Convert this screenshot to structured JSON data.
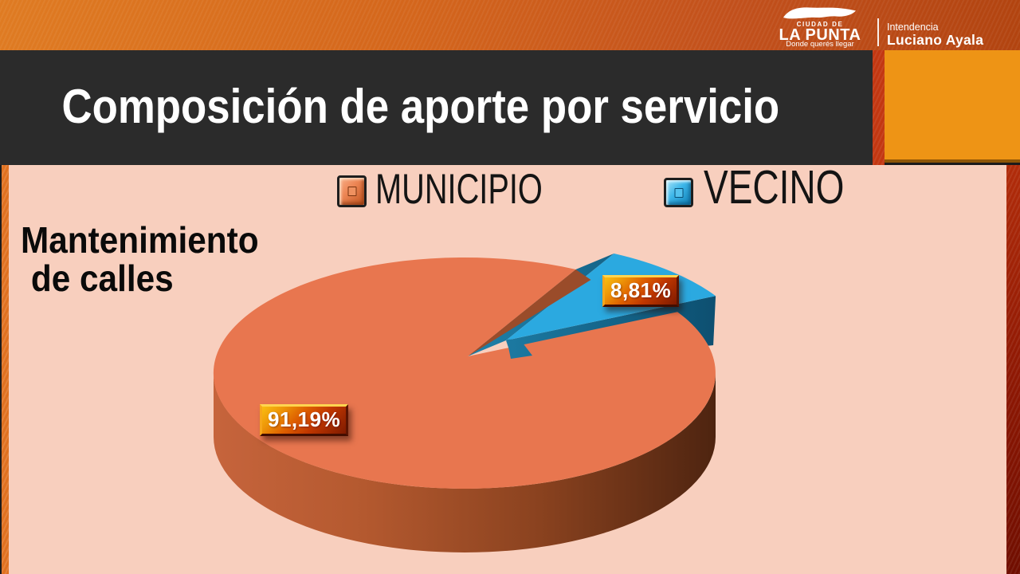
{
  "title": "Composición de aporte por servicio",
  "header": {
    "logo": {
      "city_top": "CIUDAD DE",
      "city_name": "LA PUNTA",
      "tagline": "Donde querés llegar"
    },
    "intendencia": {
      "label": "Intendencia",
      "name": "Luciano Ayala"
    }
  },
  "chart": {
    "category_line1": "Mantenimiento",
    "category_line2": "de calles"
  },
  "chart_data": {
    "type": "pie",
    "style": "3d-exploded",
    "title": "Composición de aporte por servicio",
    "series_label": "Mantenimiento de calles",
    "categories": [
      "MUNICIPIO",
      "VECINO"
    ],
    "values": [
      91.19,
      8.81
    ],
    "labels": [
      "91,19%",
      "8,81%"
    ],
    "colors": {
      "municipio": "#E8764F",
      "vecino": "#2BA9E0"
    },
    "legend_position": "top",
    "exploded_slice": "VECINO"
  },
  "colors": {
    "header_orange": "#D4661C",
    "title_bar": "#2B2B2B",
    "content_bg": "#F8CFBE",
    "accent_box": "#EE9415",
    "accent_red": "#C33711"
  }
}
